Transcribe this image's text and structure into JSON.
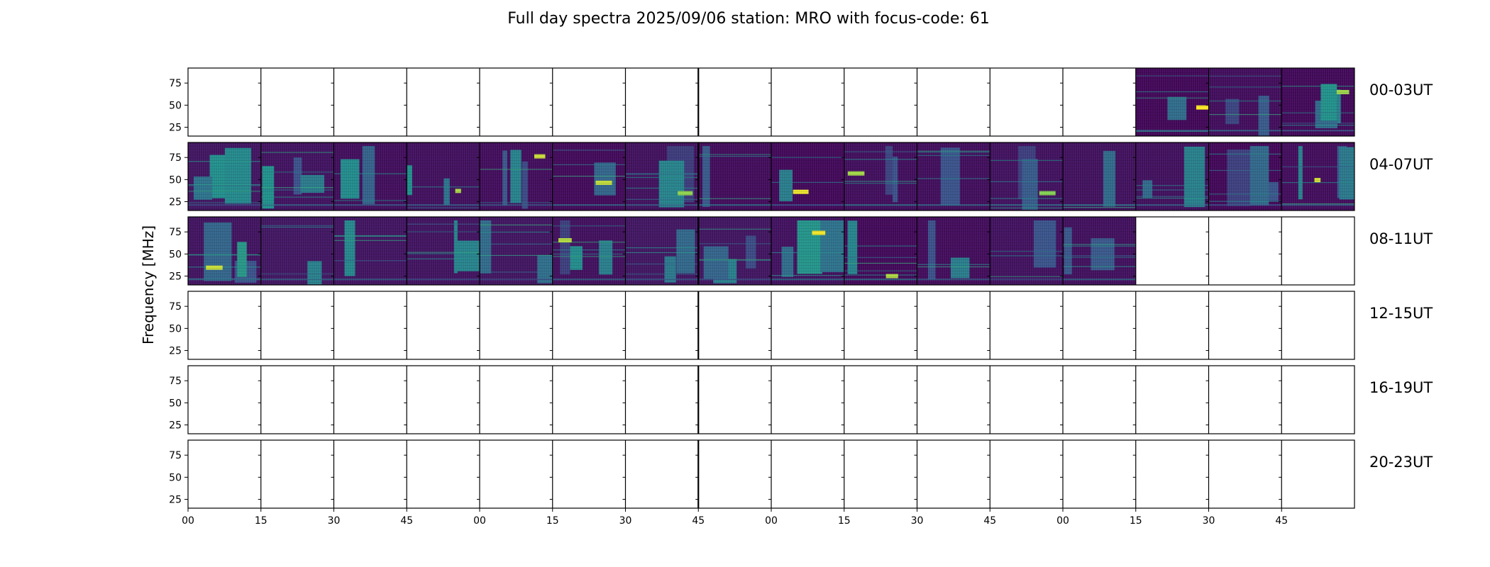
{
  "chart_data": {
    "type": "heatmap",
    "title": "Full day spectra 2025/09/06 station: MRO with focus-code: 61",
    "ylabel": "Frequency [MHz]",
    "xlabel": "",
    "ylim": [
      15,
      92
    ],
    "y_ticks": [
      "25",
      "50",
      "75"
    ],
    "x_tick_labels": [
      "00",
      "15",
      "30",
      "45",
      "00",
      "15",
      "30",
      "45",
      "00",
      "15",
      "30",
      "45",
      "00",
      "15",
      "30",
      "45"
    ],
    "colormap": "viridis",
    "colors": {
      "low": "#440154",
      "mid": "#31688e",
      "high": "#fde725"
    },
    "panels_per_row": 16,
    "panel_minutes": 15,
    "rows": [
      {
        "label": "00-03UT",
        "data_panels": [
          13,
          14,
          15
        ]
      },
      {
        "label": "04-07UT",
        "data_panels": [
          0,
          1,
          2,
          3,
          4,
          5,
          6,
          7,
          8,
          9,
          10,
          11,
          12,
          13,
          14,
          15
        ]
      },
      {
        "label": "08-11UT",
        "data_panels": [
          0,
          1,
          2,
          3,
          4,
          5,
          6,
          7,
          8,
          9,
          10,
          11,
          12
        ]
      },
      {
        "label": "12-15UT",
        "data_panels": []
      },
      {
        "label": "16-19UT",
        "data_panels": []
      },
      {
        "label": "20-23UT",
        "data_panels": []
      }
    ]
  }
}
